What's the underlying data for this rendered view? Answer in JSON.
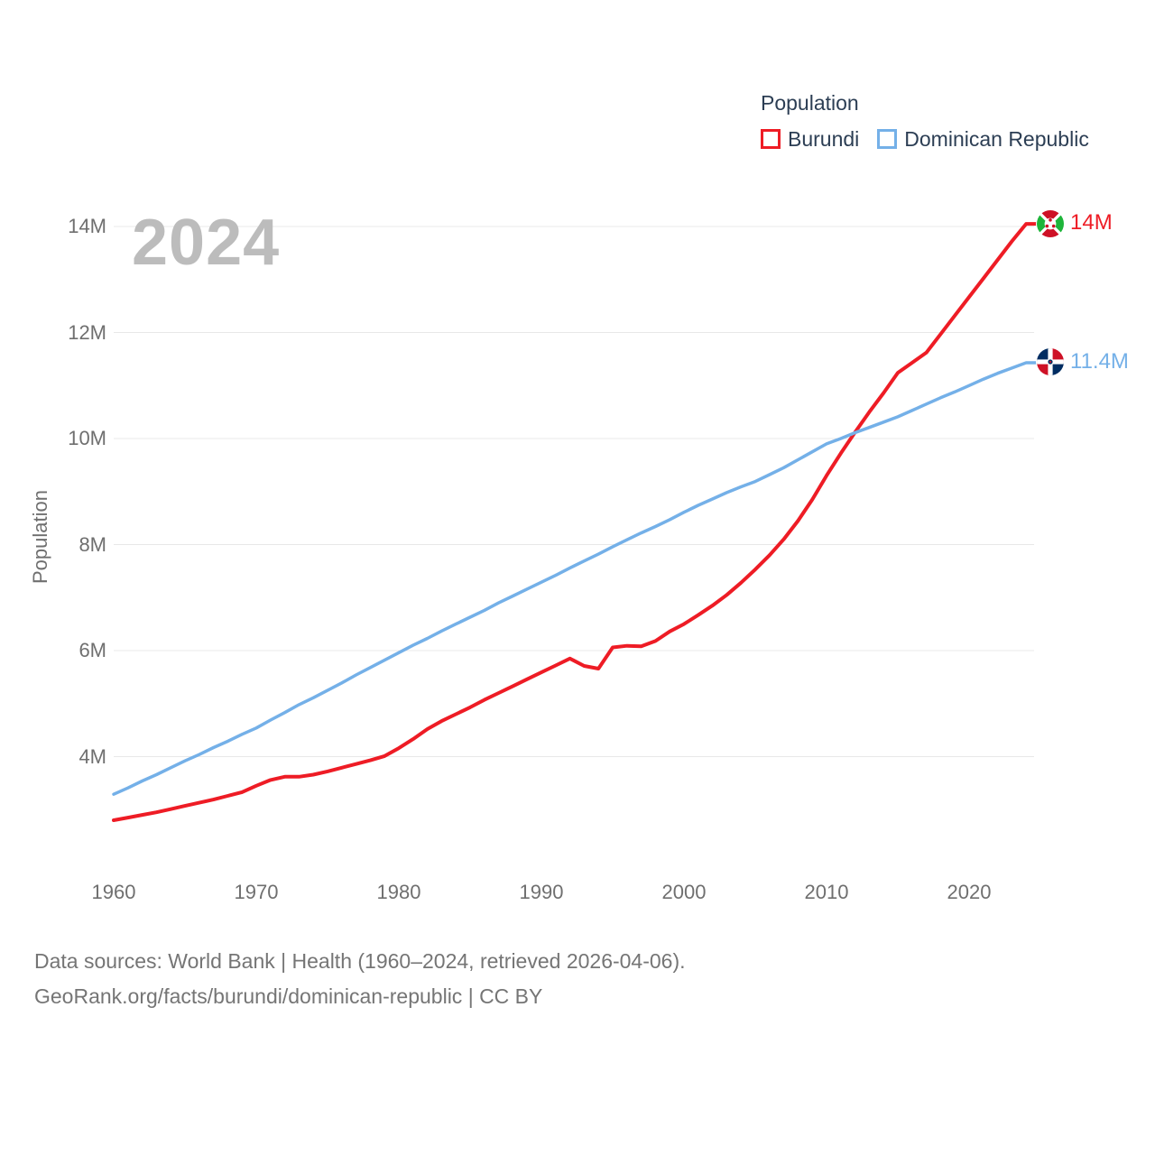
{
  "watermark": "2024",
  "legend": {
    "title": "Population",
    "items": [
      {
        "label": "Burundi"
      },
      {
        "label": "Dominican Republic"
      }
    ]
  },
  "end_labels": {
    "burundi": "14M",
    "dominican_republic": "11.4M"
  },
  "footer": {
    "line1": "Data sources: World Bank | Health (1960–2024, retrieved 2026-04-06).",
    "line2": "GeoRank.org/facts/burundi/dominican-republic | CC BY"
  },
  "chart_data": {
    "type": "line",
    "title": "Population",
    "xlabel": "",
    "ylabel": "Population",
    "grid": "horizontal",
    "legend_position": "top-right",
    "xlim": [
      1960,
      2024
    ],
    "ylim": [
      2.3,
      14.5
    ],
    "y_unit": "millions",
    "x_ticks": [
      {
        "v": 1960,
        "label": "1960"
      },
      {
        "v": 1970,
        "label": "1970"
      },
      {
        "v": 1980,
        "label": "1980"
      },
      {
        "v": 1990,
        "label": "1990"
      },
      {
        "v": 2000,
        "label": "2000"
      },
      {
        "v": 2010,
        "label": "2010"
      },
      {
        "v": 2020,
        "label": "2020"
      }
    ],
    "y_ticks": [
      {
        "v": 4,
        "label": "4M"
      },
      {
        "v": 6,
        "label": "6M"
      },
      {
        "v": 8,
        "label": "8M"
      },
      {
        "v": 10,
        "label": "10M"
      },
      {
        "v": 12,
        "label": "12M"
      },
      {
        "v": 14,
        "label": "14M"
      }
    ],
    "x": [
      1960,
      1961,
      1962,
      1963,
      1964,
      1965,
      1966,
      1967,
      1968,
      1969,
      1970,
      1971,
      1972,
      1973,
      1974,
      1975,
      1976,
      1977,
      1978,
      1979,
      1980,
      1981,
      1982,
      1983,
      1984,
      1985,
      1986,
      1987,
      1988,
      1989,
      1990,
      1991,
      1992,
      1993,
      1994,
      1995,
      1996,
      1997,
      1998,
      1999,
      2000,
      2001,
      2002,
      2003,
      2004,
      2005,
      2006,
      2007,
      2008,
      2009,
      2010,
      2011,
      2012,
      2013,
      2014,
      2015,
      2016,
      2017,
      2018,
      2019,
      2020,
      2021,
      2022,
      2023,
      2024
    ],
    "series": [
      {
        "name": "Burundi",
        "color": "#ee1c25",
        "end_label": "14M",
        "end_value_millions": 14.05,
        "values": [
          2.8,
          2.85,
          2.9,
          2.95,
          3.01,
          3.07,
          3.13,
          3.19,
          3.26,
          3.33,
          3.45,
          3.56,
          3.62,
          3.62,
          3.66,
          3.72,
          3.79,
          3.86,
          3.93,
          4.01,
          4.16,
          4.33,
          4.52,
          4.67,
          4.8,
          4.93,
          5.07,
          5.2,
          5.33,
          5.46,
          5.59,
          5.72,
          5.85,
          5.71,
          5.66,
          6.06,
          6.09,
          6.08,
          6.18,
          6.36,
          6.5,
          6.67,
          6.85,
          7.05,
          7.28,
          7.53,
          7.8,
          8.1,
          8.45,
          8.85,
          9.3,
          9.72,
          10.12,
          10.5,
          10.86,
          11.24,
          11.43,
          11.62,
          11.97,
          12.32,
          12.67,
          13.02,
          13.37,
          13.72,
          14.05
        ]
      },
      {
        "name": "Dominican Republic",
        "color": "#74b0e8",
        "end_label": "11.4M",
        "end_value_millions": 11.43,
        "values": [
          3.29,
          3.41,
          3.54,
          3.66,
          3.79,
          3.92,
          4.04,
          4.17,
          4.29,
          4.42,
          4.54,
          4.69,
          4.83,
          4.98,
          5.11,
          5.25,
          5.39,
          5.54,
          5.68,
          5.82,
          5.96,
          6.1,
          6.23,
          6.37,
          6.5,
          6.63,
          6.76,
          6.9,
          7.03,
          7.16,
          7.29,
          7.42,
          7.56,
          7.69,
          7.82,
          7.96,
          8.09,
          8.22,
          8.34,
          8.47,
          8.61,
          8.74,
          8.86,
          8.98,
          9.09,
          9.19,
          9.32,
          9.45,
          9.6,
          9.75,
          9.9,
          10.0,
          10.11,
          10.21,
          10.31,
          10.41,
          10.53,
          10.65,
          10.77,
          10.88,
          11.0,
          11.12,
          11.23,
          11.33,
          11.43
        ]
      }
    ]
  }
}
